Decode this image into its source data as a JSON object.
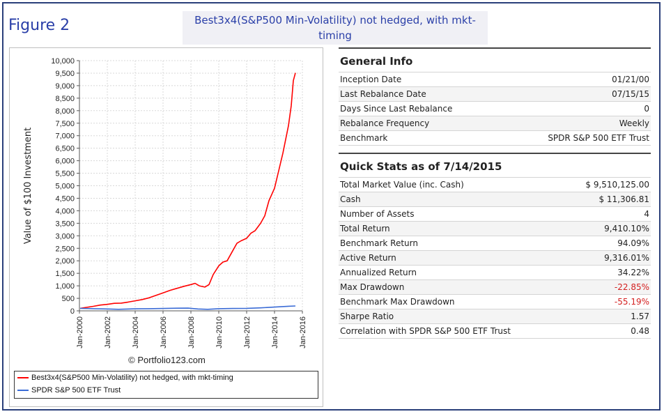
{
  "figure_label": "Figure 2",
  "caption": "Best3x4(S&P500 Min-Volatility) not hedged, with mkt-timing",
  "watermark": "© Portfolio123.com",
  "chart_data": {
    "type": "line",
    "ylabel": "Value of $100 Investment",
    "xlabel": "",
    "ylim": [
      0,
      10000
    ],
    "yticks": [
      0,
      500,
      1000,
      1500,
      2000,
      2500,
      3000,
      3500,
      4000,
      4500,
      5000,
      5500,
      6000,
      6500,
      7000,
      7500,
      8000,
      8500,
      9000,
      9500,
      10000
    ],
    "ytick_labels": [
      "0",
      "500",
      "1,000",
      "1,500",
      "2,000",
      "2,500",
      "3,000",
      "3,500",
      "4,000",
      "4,500",
      "5,000",
      "5,500",
      "6,000",
      "6,500",
      "7,000",
      "7,500",
      "8,000",
      "8,500",
      "9,000",
      "9,500",
      "10,000"
    ],
    "xlim": [
      2000,
      2016
    ],
    "xticks": [
      2000,
      2002,
      2004,
      2006,
      2008,
      2010,
      2012,
      2014,
      2016
    ],
    "xtick_labels": [
      "Jan-2000",
      "Jan-2002",
      "Jan-2004",
      "Jan-2006",
      "Jan-2008",
      "Jan-2010",
      "Jan-2012",
      "Jan-2014",
      "Jan-2016"
    ],
    "grid": true,
    "legend_position": "bottom",
    "series": [
      {
        "name": "Best3x4(S&P500 Min-Volatility) not hedged, with mkt-timing",
        "color": "#ff0000",
        "x": [
          2000.05,
          2000.5,
          2001,
          2001.5,
          2002,
          2002.5,
          2003,
          2003.5,
          2004,
          2004.5,
          2005,
          2005.5,
          2006,
          2006.5,
          2007,
          2007.5,
          2008,
          2008.3,
          2008.6,
          2009,
          2009.3,
          2009.6,
          2010,
          2010.3,
          2010.6,
          2011,
          2011.3,
          2011.6,
          2012,
          2012.3,
          2012.6,
          2013,
          2013.3,
          2013.6,
          2014,
          2014.3,
          2014.6,
          2015,
          2015.2,
          2015.35,
          2015.5
        ],
        "y": [
          100,
          140,
          180,
          230,
          260,
          300,
          310,
          350,
          400,
          450,
          520,
          620,
          720,
          820,
          900,
          980,
          1050,
          1100,
          1000,
          950,
          1050,
          1450,
          1800,
          1950,
          2000,
          2400,
          2700,
          2800,
          2900,
          3100,
          3200,
          3500,
          3800,
          4400,
          4900,
          5600,
          6300,
          7400,
          8200,
          9200,
          9510
        ]
      },
      {
        "name": "SPDR S&P 500 ETF Trust",
        "color": "#3a6bd6",
        "x": [
          2000.05,
          2001,
          2002,
          2002.8,
          2004,
          2005,
          2006,
          2007,
          2007.8,
          2008.5,
          2009.2,
          2010,
          2011,
          2012,
          2013,
          2014,
          2015,
          2015.5
        ],
        "y": [
          100,
          85,
          75,
          60,
          80,
          85,
          95,
          105,
          110,
          75,
          60,
          85,
          95,
          100,
          120,
          150,
          185,
          194
        ]
      }
    ]
  },
  "general_info": {
    "title": "General Info",
    "rows": [
      {
        "label": "Inception Date",
        "value": "01/21/00"
      },
      {
        "label": "Last Rebalance Date",
        "value": "07/15/15"
      },
      {
        "label": "Days Since Last Rebalance",
        "value": "0"
      },
      {
        "label": "Rebalance Frequency",
        "value": "Weekly"
      },
      {
        "label": "Benchmark",
        "value": "SPDR S&P 500 ETF Trust"
      }
    ]
  },
  "quick_stats": {
    "title": "Quick Stats as of 7/14/2015",
    "rows": [
      {
        "label": "Total Market Value (inc. Cash)",
        "value": "$ 9,510,125.00"
      },
      {
        "label": "Cash",
        "value": "$ 11,306.81"
      },
      {
        "label": "Number of Assets",
        "value": "4"
      },
      {
        "label": "Total Return",
        "value": "9,410.10%"
      },
      {
        "label": "Benchmark Return",
        "value": "94.09%"
      },
      {
        "label": "Active Return",
        "value": "9,316.01%"
      },
      {
        "label": "Annualized Return",
        "value": "34.22%"
      },
      {
        "label": "Max Drawdown",
        "value": "-22.85%",
        "negative": true
      },
      {
        "label": "Benchmark Max Drawdown",
        "value": "-55.19%",
        "negative": true
      },
      {
        "label": "Sharpe Ratio",
        "value": "1.57"
      },
      {
        "label": "Correlation with SPDR S&P 500 ETF Trust",
        "value": "0.48"
      }
    ]
  }
}
